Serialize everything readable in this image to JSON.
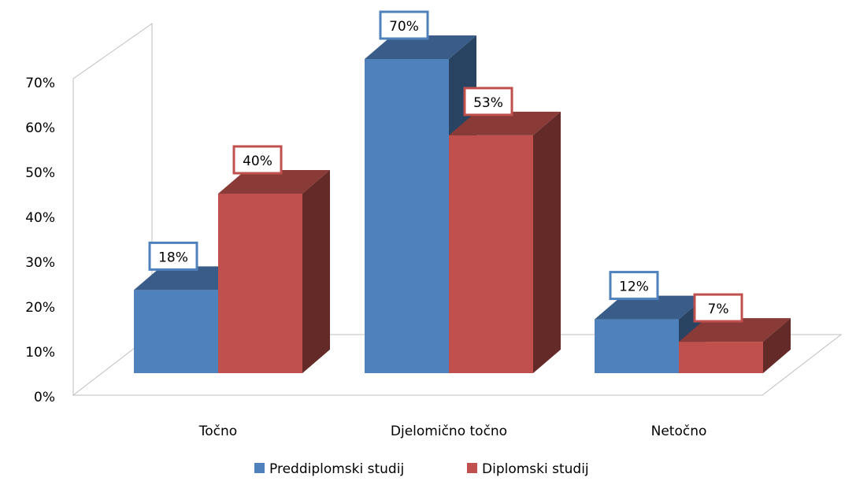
{
  "chart_data": {
    "type": "bar",
    "categories": [
      "Točno",
      "Djelomično točno",
      "Netočno"
    ],
    "series": [
      {
        "name": "Preddiplomski studij",
        "values": [
          18,
          70,
          12
        ],
        "labels": [
          "18%",
          "70%",
          "12%"
        ],
        "color": "#4f81bd"
      },
      {
        "name": "Diplomski studij",
        "values": [
          40,
          53,
          7
        ],
        "labels": [
          "40%",
          "53%",
          "7%"
        ],
        "color": "#c0504d"
      }
    ],
    "yticks": [
      "0%",
      "10%",
      "20%",
      "30%",
      "40%",
      "50%",
      "60%",
      "70%"
    ],
    "ylim": [
      0,
      70
    ],
    "legend_position": "bottom",
    "style": "3d-clustered-column"
  }
}
